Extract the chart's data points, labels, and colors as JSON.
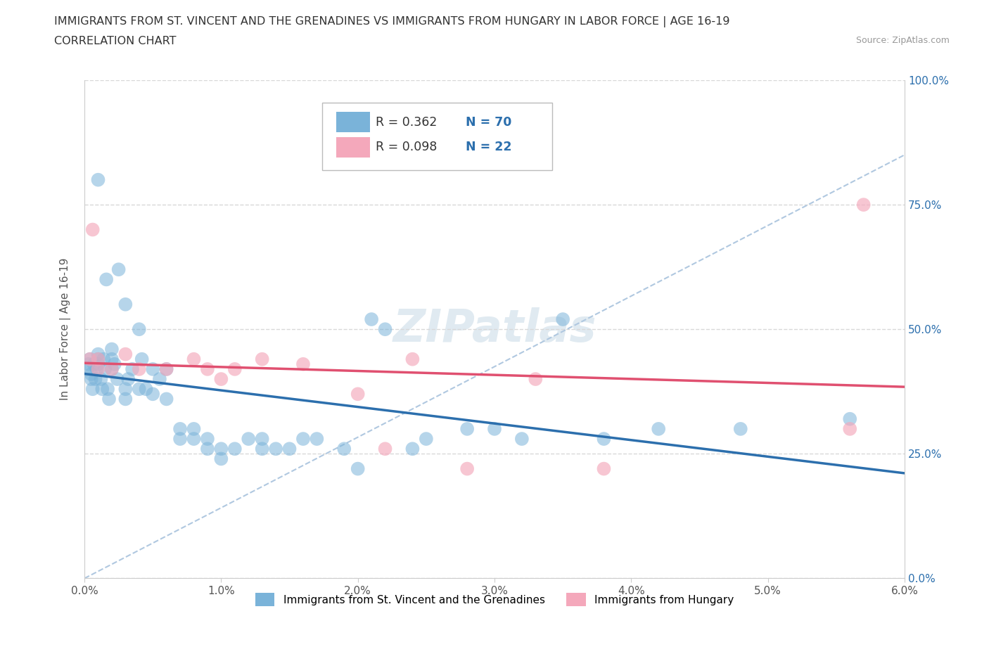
{
  "title_line1": "IMMIGRANTS FROM ST. VINCENT AND THE GRENADINES VS IMMIGRANTS FROM HUNGARY IN LABOR FORCE | AGE 16-19",
  "title_line2": "CORRELATION CHART",
  "source_text": "Source: ZipAtlas.com",
  "ylabel": "In Labor Force | Age 16-19",
  "xmin": 0.0,
  "xmax": 0.06,
  "ymin": 0.0,
  "ymax": 1.0,
  "yticks": [
    0.0,
    0.25,
    0.5,
    0.75,
    1.0
  ],
  "ytick_labels": [
    "0.0%",
    "25.0%",
    "50.0%",
    "75.0%",
    "100.0%"
  ],
  "xticks": [
    0.0,
    0.01,
    0.02,
    0.03,
    0.04,
    0.05,
    0.06
  ],
  "xtick_labels": [
    "0.0%",
    "1.0%",
    "2.0%",
    "3.0%",
    "4.0%",
    "5.0%",
    "6.0%"
  ],
  "blue_color": "#7ab3d9",
  "pink_color": "#f4a8bb",
  "blue_line_color": "#2c6fad",
  "pink_line_color": "#e05070",
  "dashed_line_color": "#b0c8e0",
  "R_blue": 0.362,
  "N_blue": 70,
  "R_pink": 0.098,
  "N_pink": 22,
  "blue_scatter_x": [
    0.0002,
    0.0003,
    0.0004,
    0.0005,
    0.0005,
    0.0006,
    0.0007,
    0.0008,
    0.0009,
    0.001,
    0.001,
    0.001,
    0.001,
    0.0012,
    0.0013,
    0.0014,
    0.0015,
    0.0016,
    0.0017,
    0.0018,
    0.002,
    0.002,
    0.002,
    0.0022,
    0.0024,
    0.0025,
    0.003,
    0.003,
    0.003,
    0.0032,
    0.0035,
    0.004,
    0.004,
    0.0042,
    0.0045,
    0.005,
    0.005,
    0.0055,
    0.006,
    0.006,
    0.007,
    0.007,
    0.008,
    0.008,
    0.009,
    0.009,
    0.01,
    0.01,
    0.011,
    0.012,
    0.013,
    0.013,
    0.014,
    0.015,
    0.016,
    0.017,
    0.019,
    0.02,
    0.021,
    0.022,
    0.024,
    0.025,
    0.028,
    0.03,
    0.032,
    0.035,
    0.038,
    0.042,
    0.048,
    0.056
  ],
  "blue_scatter_y": [
    0.42,
    0.43,
    0.44,
    0.4,
    0.41,
    0.38,
    0.43,
    0.4,
    0.42,
    0.43,
    0.44,
    0.45,
    0.8,
    0.4,
    0.38,
    0.44,
    0.42,
    0.6,
    0.38,
    0.36,
    0.42,
    0.44,
    0.46,
    0.43,
    0.4,
    0.62,
    0.36,
    0.38,
    0.55,
    0.4,
    0.42,
    0.38,
    0.5,
    0.44,
    0.38,
    0.37,
    0.42,
    0.4,
    0.36,
    0.42,
    0.3,
    0.28,
    0.3,
    0.28,
    0.26,
    0.28,
    0.24,
    0.26,
    0.26,
    0.28,
    0.26,
    0.28,
    0.26,
    0.26,
    0.28,
    0.28,
    0.26,
    0.22,
    0.52,
    0.5,
    0.26,
    0.28,
    0.3,
    0.3,
    0.28,
    0.52,
    0.28,
    0.3,
    0.3,
    0.32
  ],
  "pink_scatter_x": [
    0.0004,
    0.0006,
    0.001,
    0.001,
    0.002,
    0.003,
    0.004,
    0.006,
    0.008,
    0.009,
    0.01,
    0.011,
    0.013,
    0.016,
    0.02,
    0.022,
    0.024,
    0.028,
    0.033,
    0.038,
    0.056,
    0.057
  ],
  "pink_scatter_y": [
    0.44,
    0.7,
    0.42,
    0.44,
    0.42,
    0.45,
    0.42,
    0.42,
    0.44,
    0.42,
    0.4,
    0.42,
    0.44,
    0.43,
    0.37,
    0.26,
    0.44,
    0.22,
    0.4,
    0.22,
    0.3,
    0.75
  ],
  "watermark_text": "ZIPatlas",
  "grid_color": "#d8d8d8",
  "background_color": "#ffffff",
  "legend_label_blue": "Immigrants from St. Vincent and the Grenadines",
  "legend_label_pink": "Immigrants from Hungary"
}
